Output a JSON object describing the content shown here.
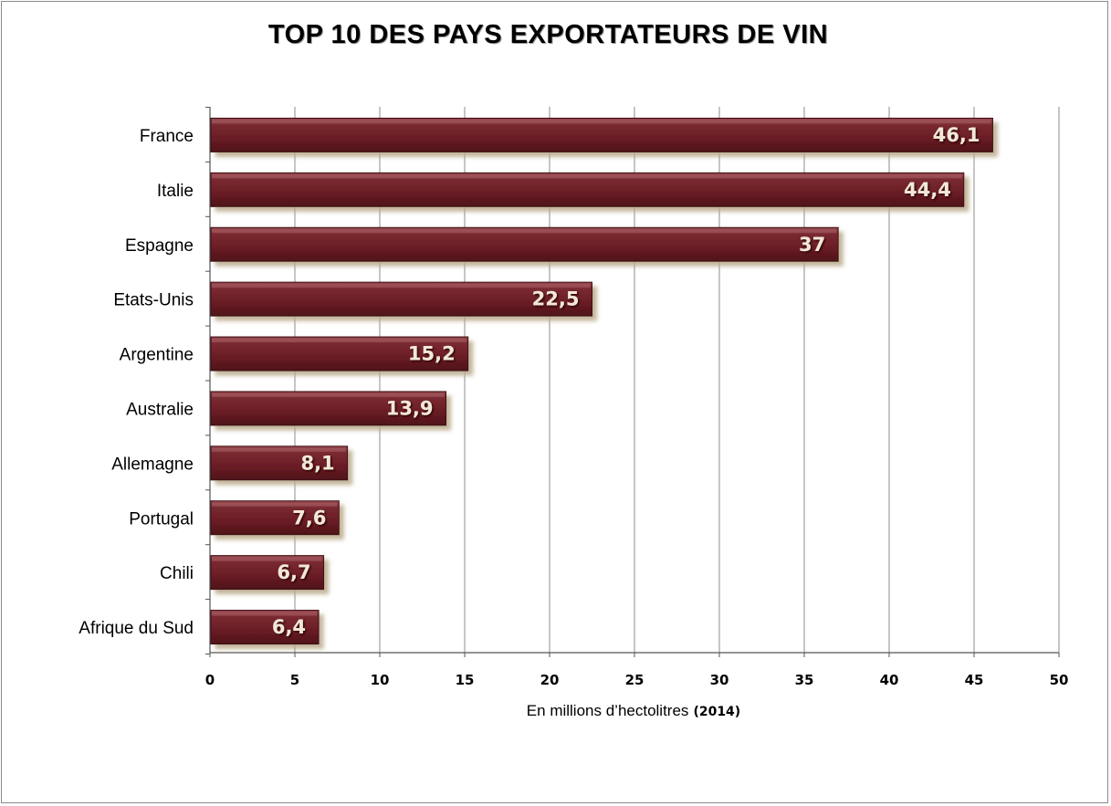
{
  "chart_data": {
    "type": "bar",
    "orientation": "horizontal",
    "title": "TOP 10 DES PAYS EXPORTATEURS DE VIN",
    "xlabel": "En millions d’hectolitres",
    "xlabel_suffix": "(2014)",
    "ylabel": "",
    "categories": [
      "France",
      "Italie",
      "Espagne",
      "Etats-Unis",
      "Argentine",
      "Australie",
      "Allemagne",
      "Portugal",
      "Chili",
      "Afrique du Sud"
    ],
    "values": [
      46.1,
      44.4,
      37,
      22.5,
      15.2,
      13.9,
      8.1,
      7.6,
      6.7,
      6.4
    ],
    "value_labels": [
      "46,1",
      "44,4",
      "37",
      "22,5",
      "15,2",
      "13,9",
      "8,1",
      "7,6",
      "6,7",
      "6,4"
    ],
    "xlim": [
      0,
      50
    ],
    "xticks": [
      0,
      5,
      10,
      15,
      20,
      25,
      30,
      35,
      40,
      45,
      50
    ],
    "grid": "vertical",
    "legend": "none",
    "bar_color": "#6e1f27",
    "bar_highlight_color": "#9a4a50",
    "label_color": "#f2e8d8"
  }
}
